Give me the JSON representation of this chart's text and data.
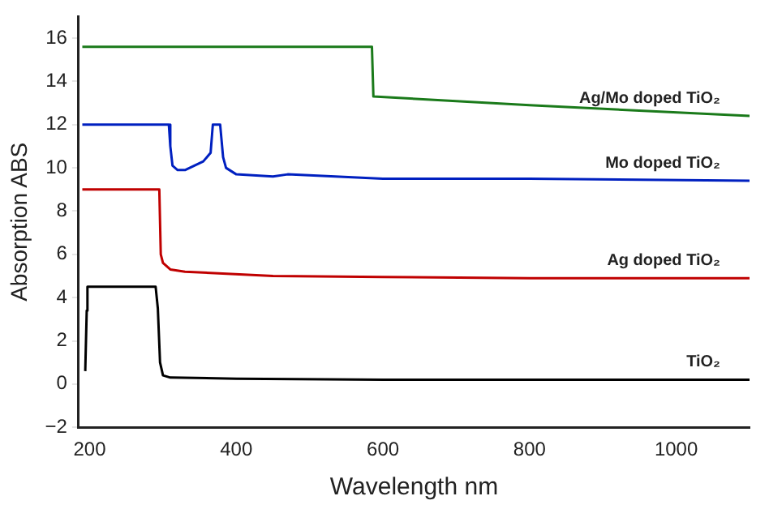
{
  "chart_data": {
    "type": "line",
    "xlabel": "Wavelength nm",
    "ylabel": "Absorption ABS",
    "xlim": [
      185,
      1100
    ],
    "ylim": [
      -2,
      17
    ],
    "xticks": [
      200,
      400,
      600,
      800,
      1000
    ],
    "yticks": [
      -2,
      0,
      2,
      4,
      6,
      8,
      10,
      12,
      14,
      16
    ],
    "grid": false,
    "legend": false,
    "marker": "none",
    "line_style": "solid",
    "series": [
      {
        "name": "TiO₂",
        "color": "#000000",
        "x": [
          194,
          196,
          197,
          290,
          293,
          296,
          300,
          310,
          400,
          600,
          800,
          1100
        ],
        "values": [
          0.6,
          3.4,
          4.5,
          4.5,
          3.5,
          1,
          0.4,
          0.3,
          0.25,
          0.2,
          0.2,
          0.2
        ]
      },
      {
        "name": "Ag doped TiO₂",
        "color": "#c00000",
        "x": [
          190,
          295,
          297,
          300,
          310,
          330,
          450,
          600,
          800,
          1100
        ],
        "values": [
          9,
          9,
          6,
          5.6,
          5.3,
          5.2,
          5,
          4.95,
          4.9,
          4.9
        ]
      },
      {
        "name": "Mo doped TiO₂",
        "color": "#0020c0",
        "x": [
          190,
          308,
          310,
          313,
          320,
          330,
          355,
          365,
          368,
          378,
          382,
          386,
          400,
          450,
          470,
          600,
          800,
          1100
        ],
        "values": [
          12,
          12,
          11,
          10.1,
          9.9,
          9.9,
          10.3,
          10.7,
          12,
          12,
          10.5,
          10,
          9.7,
          9.6,
          9.7,
          9.5,
          9.5,
          9.4
        ]
      },
      {
        "name": "Ag/Mo doped TiO₂",
        "color": "#1a7a1a",
        "x": [
          190,
          585,
          587,
          800,
          1100
        ],
        "values": [
          15.6,
          15.6,
          13.3,
          12.9,
          12.4
        ]
      }
    ]
  }
}
